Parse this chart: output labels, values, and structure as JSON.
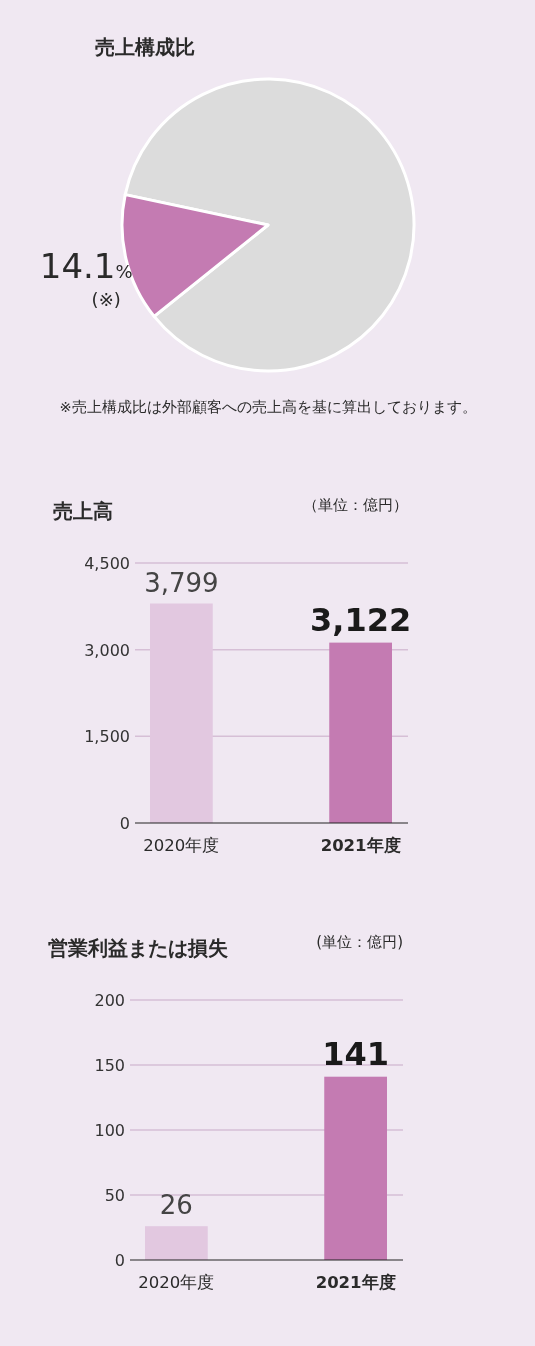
{
  "chart_data": [
    {
      "type": "pie",
      "title": "売上構成比",
      "categories": [
        null,
        null
      ],
      "values": [
        85.9,
        14.1
      ],
      "colors": [
        "#dcdcdc",
        "#c47bb2"
      ],
      "value_labels": [
        null,
        "14.1%"
      ],
      "annotations": [
        "(※)",
        "※売上構成比は外部顧客への売上高を基に算出しております。"
      ]
    },
    {
      "type": "bar",
      "title": "売上高",
      "categories": [
        "2020年度",
        "2021年度"
      ],
      "values": [
        3799,
        3122
      ],
      "colors": [
        "#e2c8e0",
        "#c47bb2"
      ],
      "ylim": [
        0,
        4500
      ],
      "yticks": [
        0,
        {
          "value": 1500,
          "label": "1,500"
        },
        {
          "value": 3000,
          "label": "3,000"
        },
        {
          "value": 4500,
          "label": "4,500"
        }
      ],
      "grid": "y",
      "value_labels": [
        "3,799",
        "3,122"
      ],
      "annotations": [
        "（単位：億円）"
      ]
    },
    {
      "type": "bar",
      "title": "営業利益または損失",
      "categories": [
        "2020年度",
        "2021年度"
      ],
      "values": [
        26,
        141
      ],
      "colors": [
        "#e2c8e0",
        "#c47bb2"
      ],
      "ylim": [
        0,
        200
      ],
      "yticks": [
        0,
        50,
        100,
        150,
        200
      ],
      "grid": "y",
      "data_labels": true,
      "annotations": [
        "(単位：億円)"
      ]
    }
  ]
}
